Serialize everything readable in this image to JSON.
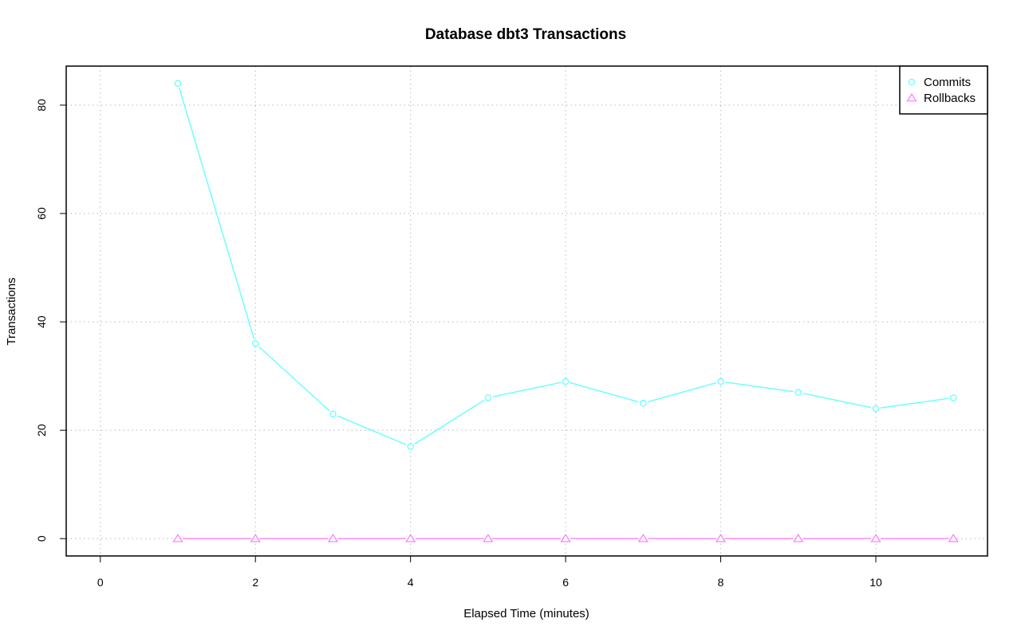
{
  "chart_data": {
    "type": "line",
    "title": "Database dbt3 Transactions",
    "xlabel": "Elapsed Time (minutes)",
    "ylabel": "Transactions",
    "xlim": [
      -0.44,
      11.44
    ],
    "ylim": [
      -3.2,
      87.2
    ],
    "x_ticks": [
      0,
      2,
      4,
      6,
      8,
      10
    ],
    "y_ticks": [
      0,
      20,
      40,
      60,
      80
    ],
    "grid": true,
    "legend_position": "top-right",
    "x": [
      1,
      2,
      3,
      4,
      5,
      6,
      7,
      8,
      9,
      10,
      11
    ],
    "series": [
      {
        "name": "Commits",
        "color": "#66ffff",
        "marker": "circle",
        "values": [
          84,
          36,
          23,
          17,
          26,
          29,
          25,
          29,
          27,
          24,
          26
        ]
      },
      {
        "name": "Rollbacks",
        "color": "#ff80ff",
        "marker": "triangle",
        "values": [
          0,
          0,
          0,
          0,
          0,
          0,
          0,
          0,
          0,
          0,
          0
        ]
      }
    ]
  }
}
